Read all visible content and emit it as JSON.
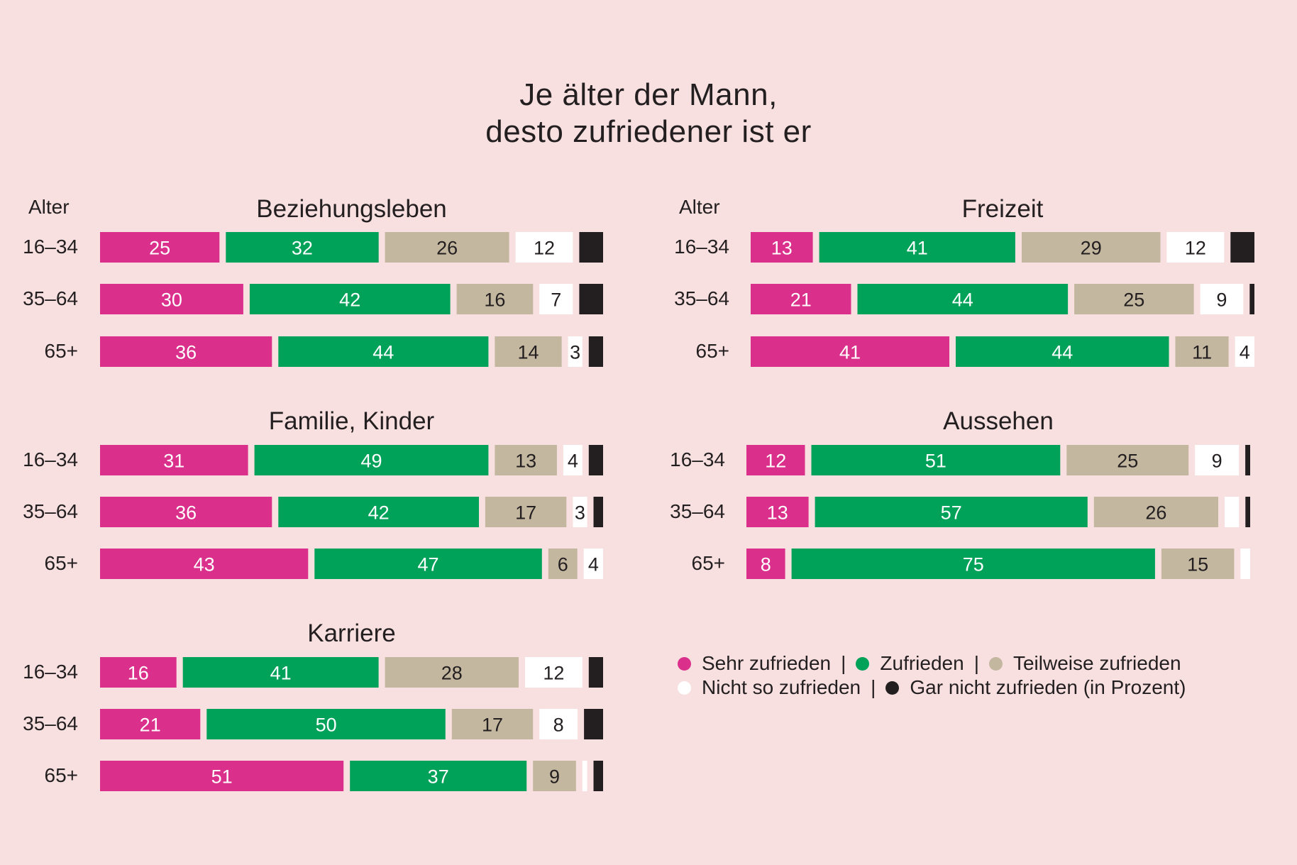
{
  "chart_data": {
    "type": "bar",
    "orientation": "horizontal-stacked-100",
    "title": "Je älter der Mann,\ndesto zufriedener ist er",
    "title_lines": [
      "Je älter der Mann,",
      "desto zufriedener ist er"
    ],
    "age_header": "Alter",
    "categories": [
      "16–34",
      "35–64",
      "65+"
    ],
    "unit": "Prozent",
    "series_names": [
      "Sehr zufrieden",
      "Zufrieden",
      "Teilweise zufrieden",
      "Nicht so zufrieden",
      "Gar nicht zufrieden"
    ],
    "colors": [
      "#DA2F8A",
      "#00A159",
      "#C3B7A0",
      "#FFFFFF",
      "#231F20"
    ],
    "label_colors": [
      "#FFFFFF",
      "#FFFFFF",
      "#231F20",
      "#231F20",
      "#FFFFFF"
    ],
    "panels": [
      {
        "title": "Beziehungsleben",
        "rows": [
          {
            "age": "16–34",
            "values": [
              25,
              32,
              26,
              12,
              5
            ],
            "labels": [
              "25",
              "32",
              "26",
              "12",
              ""
            ]
          },
          {
            "age": "35–64",
            "values": [
              30,
              42,
              16,
              7,
              5
            ],
            "labels": [
              "30",
              "42",
              "16",
              "7",
              ""
            ]
          },
          {
            "age": "65+",
            "values": [
              36,
              44,
              14,
              3,
              3
            ],
            "labels": [
              "36",
              "44",
              "14",
              "3",
              ""
            ]
          }
        ]
      },
      {
        "title": "Freizeit",
        "rows": [
          {
            "age": "16–34",
            "values": [
              13,
              41,
              29,
              12,
              5
            ],
            "labels": [
              "13",
              "41",
              "29",
              "12",
              ""
            ]
          },
          {
            "age": "35–64",
            "values": [
              21,
              44,
              25,
              9,
              1
            ],
            "labels": [
              "21",
              "44",
              "25",
              "9",
              ""
            ]
          },
          {
            "age": "65+",
            "values": [
              41,
              44,
              11,
              4,
              0
            ],
            "labels": [
              "41",
              "44",
              "11",
              "4",
              ""
            ]
          }
        ]
      },
      {
        "title": "Familie, Kinder",
        "rows": [
          {
            "age": "16–34",
            "values": [
              31,
              49,
              13,
              4,
              3
            ],
            "labels": [
              "31",
              "49",
              "13",
              "4",
              ""
            ]
          },
          {
            "age": "35–64",
            "values": [
              36,
              42,
              17,
              3,
              2
            ],
            "labels": [
              "36",
              "42",
              "17",
              "3",
              ""
            ]
          },
          {
            "age": "65+",
            "values": [
              43,
              47,
              6,
              4,
              0
            ],
            "labels": [
              "43",
              "47",
              "6",
              "4",
              ""
            ]
          }
        ]
      },
      {
        "title": "Aussehen",
        "rows": [
          {
            "age": "16–34",
            "values": [
              12,
              51,
              25,
              9,
              1
            ],
            "labels": [
              "12",
              "51",
              "25",
              "9",
              ""
            ]
          },
          {
            "age": "35–64",
            "values": [
              13,
              57,
              26,
              3,
              1
            ],
            "labels": [
              "13",
              "57",
              "26",
              "",
              ""
            ]
          },
          {
            "age": "65+",
            "values": [
              8,
              75,
              15,
              2,
              0
            ],
            "labels": [
              "8",
              "75",
              "15",
              "",
              ""
            ]
          }
        ]
      },
      {
        "title": "Karriere",
        "rows": [
          {
            "age": "16–34",
            "values": [
              16,
              41,
              28,
              12,
              3
            ],
            "labels": [
              "16",
              "41",
              "28",
              "12",
              ""
            ]
          },
          {
            "age": "35–64",
            "values": [
              21,
              50,
              17,
              8,
              4
            ],
            "labels": [
              "21",
              "50",
              "17",
              "8",
              ""
            ]
          },
          {
            "age": "65+",
            "values": [
              51,
              37,
              9,
              1,
              2
            ],
            "labels": [
              "51",
              "37",
              "9",
              "",
              ""
            ]
          }
        ]
      }
    ],
    "legend": {
      "position": "bottom-right",
      "rows": [
        [
          "Sehr zufrieden",
          "Zufrieden",
          "Teilweise zufrieden"
        ],
        [
          "Nicht so zufrieden",
          "Gar nicht zufrieden (in Prozent)"
        ]
      ],
      "separator": "|"
    }
  }
}
